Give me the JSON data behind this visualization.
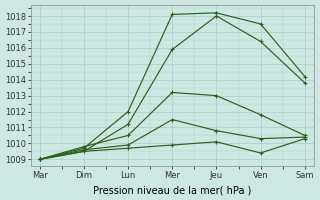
{
  "x_labels": [
    "Mar",
    "Dim",
    "Lun",
    "Mer",
    "Jeu",
    "Ven",
    "Sam"
  ],
  "x_positions": [
    0,
    1,
    2,
    3,
    4,
    5,
    6
  ],
  "line1": [
    1009.0,
    1009.7,
    1012.0,
    1018.1,
    1018.2,
    1017.5,
    1014.2
  ],
  "line2": [
    1009.0,
    1009.5,
    1011.2,
    1015.9,
    1018.0,
    1016.4,
    1013.8
  ],
  "line3": [
    1009.0,
    1009.8,
    1010.5,
    1013.2,
    1013.0,
    1011.8,
    1010.5
  ],
  "line4": [
    1009.0,
    1009.6,
    1009.9,
    1011.5,
    1010.8,
    1010.3,
    1010.4
  ],
  "line5": [
    1009.0,
    1009.5,
    1009.7,
    1009.9,
    1010.1,
    1009.4,
    1010.3
  ],
  "line_color": "#2d5f1e",
  "bg_color": "#cde8e2",
  "grid_color": "#aaccc6",
  "ylabel": "Pression niveau de la mer( hPa )",
  "ylim": [
    1008.6,
    1018.7
  ],
  "yticks": [
    1009,
    1010,
    1011,
    1012,
    1013,
    1014,
    1015,
    1016,
    1017,
    1018
  ],
  "axis_fontsize": 6.0,
  "xlabel_fontsize": 7.0
}
